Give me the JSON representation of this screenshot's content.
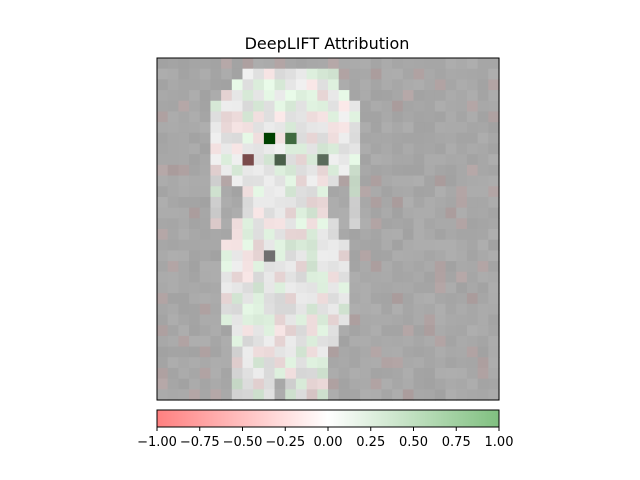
{
  "chart_data": {
    "type": "heatmap",
    "title": "DeepLIFT Attribution",
    "xlabel": "",
    "ylabel": "",
    "image_axis_ticks": false,
    "colorbar": {
      "orientation": "horizontal",
      "placement": "bottom",
      "vmin": -1.0,
      "vmax": 1.0,
      "ticks": [
        -1.0,
        -0.75,
        -0.5,
        -0.25,
        0.0,
        0.25,
        0.5,
        0.75,
        1.0
      ],
      "tick_labels": [
        "−1.00",
        "−0.75",
        "−0.50",
        "−0.25",
        "0.00",
        "0.25",
        "0.50",
        "0.75",
        "1.00"
      ],
      "colormap": {
        "negative": "#ff8080",
        "zero": "#ffffff",
        "positive": "#80c080"
      }
    },
    "grid": {
      "rows": 32,
      "cols": 32
    },
    "background_gray": "#a8a8a8",
    "dark_spots": [
      {
        "row": 7,
        "col": 10,
        "value": 0.95,
        "color": "#004000"
      },
      {
        "row": 7,
        "col": 12,
        "value": 0.55,
        "color": "#3f6a3f"
      },
      {
        "row": 9,
        "col": 8,
        "value": -0.55,
        "color": "#7a4b4b"
      },
      {
        "row": 9,
        "col": 11,
        "value": 0.55,
        "color": "#4a5f4a"
      },
      {
        "row": 9,
        "col": 15,
        "value": 0.45,
        "color": "#5b6b5b"
      },
      {
        "row": 18,
        "col": 10,
        "value": 0.2,
        "color": "#6f6f6f"
      }
    ]
  }
}
